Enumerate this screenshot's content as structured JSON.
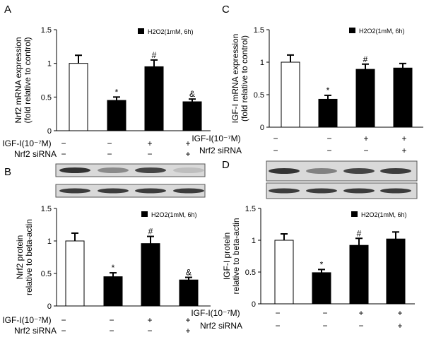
{
  "colors": {
    "axis": "#000000",
    "bar_control": "#ffffff",
    "bar_treated": "#000000",
    "blot_band": "#2a2a2a",
    "blot_bg": "#d9d9d9"
  },
  "chart_data": [
    {
      "panel": "A",
      "type": "bar",
      "ylabel": [
        "Nrf2 mRNA expression",
        "(fold relative to control)"
      ],
      "legend": "H2O2(1mM, 6h)",
      "ylim": [
        0,
        1.5
      ],
      "yticks": [
        "0",
        "0.5",
        "1",
        "1.5"
      ],
      "values": [
        1.0,
        0.45,
        0.95,
        0.43
      ],
      "errors": [
        0.12,
        0.05,
        0.1,
        0.04
      ],
      "markers": [
        "",
        "*",
        "#",
        "&"
      ],
      "row1_label": "IGF-I(10⁻⁷M)",
      "row1": [
        "−",
        "−",
        "+",
        "+"
      ],
      "row2_label": "Nrf2 siRNA",
      "row2": [
        "−",
        "−",
        "−",
        "+"
      ]
    },
    {
      "panel": "C",
      "type": "bar",
      "ylabel": [
        "IGF-I mRNA expression",
        "(fold relative to control)"
      ],
      "legend": "H2O2(1mM, 6h)",
      "ylim": [
        0,
        1.5
      ],
      "yticks": [
        "0",
        "0.5",
        "1",
        "1.5"
      ],
      "values": [
        1.0,
        0.43,
        0.89,
        0.91
      ],
      "errors": [
        0.11,
        0.06,
        0.08,
        0.07
      ],
      "markers": [
        "",
        "*",
        "#",
        ""
      ],
      "row1_label": "IGF-I(10⁻⁷M)",
      "row1": [
        "−",
        "−",
        "+",
        "+"
      ],
      "row2_label": "Nrf2 siRNA",
      "row2": [
        "−",
        "−",
        "−",
        "+"
      ]
    },
    {
      "panel": "B",
      "type": "bar",
      "ylabel": [
        "Nrf2 protein",
        "relative to beta-actin"
      ],
      "legend": "H2O2(1mM, 6h)",
      "ylim": [
        0,
        1.5
      ],
      "yticks": [
        "0",
        "0.5",
        "1",
        "1.5"
      ],
      "values": [
        1.0,
        0.45,
        0.96,
        0.4
      ],
      "errors": [
        0.12,
        0.06,
        0.11,
        0.04
      ],
      "markers": [
        "",
        "*",
        "#",
        "&"
      ],
      "row1_label": "IGF-I(10⁻⁷M)",
      "row1": [
        "−",
        "−",
        "+",
        "+"
      ],
      "row2_label": "Nrf2 siRNA",
      "row2": [
        "−",
        "−",
        "−",
        "+"
      ],
      "blot_intensity": [
        [
          0.95,
          0.45,
          0.85,
          0.15
        ],
        [
          0.9,
          0.9,
          0.9,
          0.9
        ]
      ]
    },
    {
      "panel": "D",
      "type": "bar",
      "ylabel": [
        "IGF-I protein",
        "relative to beta-actin"
      ],
      "legend": "H2O2(1mM, 6h)",
      "ylim": [
        0,
        1.5
      ],
      "yticks": [
        "0",
        "0.5",
        "1",
        "1.5"
      ],
      "values": [
        1.0,
        0.49,
        0.92,
        1.02
      ],
      "errors": [
        0.1,
        0.05,
        0.11,
        0.11
      ],
      "markers": [
        "",
        "*",
        "#",
        ""
      ],
      "row1_label": "IGF-I(10⁻⁷M)",
      "row1": [
        "−",
        "−",
        "+",
        "+"
      ],
      "row2_label": "Nrf2 siRNA",
      "row2": [
        "−",
        "−",
        "−",
        "+"
      ],
      "blot_intensity": [
        [
          0.95,
          0.5,
          0.85,
          0.9
        ],
        [
          0.9,
          0.9,
          0.9,
          0.9
        ]
      ]
    }
  ]
}
